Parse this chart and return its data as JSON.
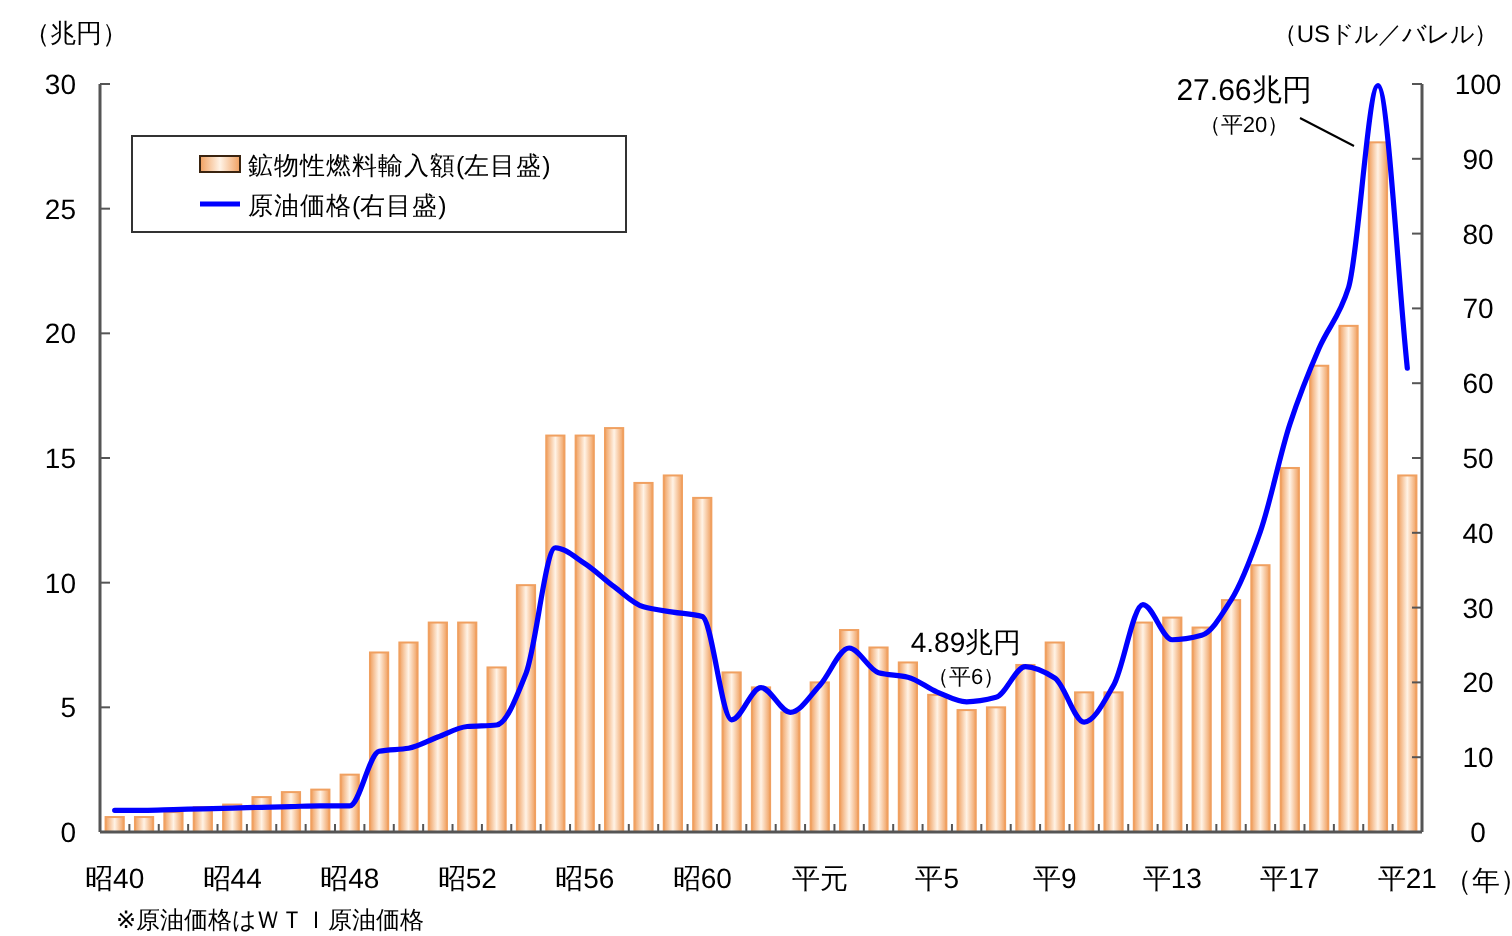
{
  "chart_data": {
    "type": "bar",
    "categories": [
      "昭40",
      null,
      null,
      null,
      "昭44",
      null,
      null,
      null,
      "昭48",
      null,
      null,
      null,
      "昭52",
      null,
      null,
      null,
      "昭56",
      null,
      null,
      null,
      "昭60",
      null,
      null,
      null,
      "平元",
      null,
      null,
      null,
      "平5",
      null,
      null,
      null,
      "平9",
      null,
      null,
      null,
      "平13",
      null,
      null,
      null,
      "平17",
      null,
      null,
      null,
      "平21"
    ],
    "series": [
      {
        "name": "鉱物性燃料輸入額(左目盛)",
        "color": "#f0a060",
        "values": [
          0.6,
          0.6,
          0.8,
          1.0,
          1.1,
          1.4,
          1.6,
          1.7,
          2.3,
          7.2,
          7.6,
          8.4,
          8.4,
          6.6,
          9.9,
          15.9,
          15.9,
          16.2,
          14.0,
          14.3,
          13.4,
          6.4,
          5.8,
          4.8,
          6.0,
          8.1,
          7.4,
          6.8,
          5.5,
          4.89,
          5.0,
          6.7,
          7.6,
          5.6,
          5.6,
          8.4,
          8.6,
          8.2,
          9.3,
          10.7,
          14.6,
          18.7,
          20.3,
          27.66,
          14.3
        ]
      },
      {
        "name": "原油価格(右目盛)",
        "type": "line",
        "axis": "y2",
        "color": "#0000ff",
        "values": [
          2.9,
          2.9,
          3.0,
          3.1,
          3.2,
          3.3,
          3.4,
          3.5,
          3.5,
          10.8,
          11.2,
          12.7,
          14.1,
          14.3,
          21.2,
          38.0,
          35.9,
          32.8,
          30.1,
          29.4,
          28.8,
          15.0,
          19.3,
          16.0,
          19.6,
          24.6,
          21.3,
          20.7,
          18.7,
          17.4,
          18.0,
          22.1,
          20.6,
          14.7,
          19.6,
          30.4,
          25.7,
          26.3,
          31.0,
          40.2,
          54.5,
          64.7,
          72.8,
          99.8,
          62.0
        ]
      }
    ],
    "ylabel": "（兆円）",
    "y2label": "（USドル／バレル）",
    "xlabel": "（年）",
    "ylim": [
      0,
      30
    ],
    "yticks": [
      0,
      5,
      10,
      15,
      20,
      25,
      30
    ],
    "y2lim": [
      0,
      100
    ],
    "y2ticks": [
      0,
      10,
      20,
      30,
      40,
      50,
      60,
      70,
      80,
      90,
      100
    ],
    "legend": "top left",
    "grid": false,
    "annotations": [
      "27.66兆円",
      "（平20）",
      "4.89兆円",
      "（平6）",
      "※原油価格はＷＴＩ原油価格"
    ]
  }
}
